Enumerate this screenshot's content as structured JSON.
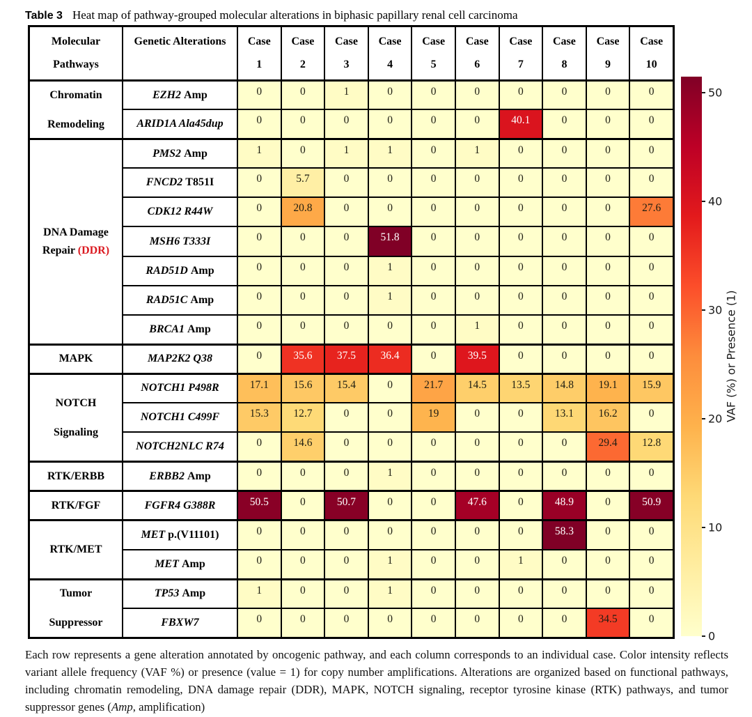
{
  "title": {
    "label": "Table 3",
    "text": "Heat map of pathway-grouped molecular alterations in biphasic papillary renal cell carcinoma"
  },
  "caption_parts": [
    {
      "text": "Each row represents a gene alteration annotated by oncogenic pathway, and each column corresponds to an individual case. Color intensity reflects variant allele frequency (VAF %) or presence (value = 1) for copy number amplifications. Alterations are organized based on functional pathways, including chromatin remodeling, DNA damage repair (DDR), MAPK, NOTCH signaling, receptor tyrosine kinase (RTK) pathways, and tumor suppressor genes ("
    },
    {
      "text": "Amp",
      "italic": true
    },
    {
      "text": ", amplification)"
    }
  ],
  "colors": {
    "accent_red": "#db1a21",
    "grid_line": "#000000",
    "text_dark": "#1d1d12",
    "text_light": "#ffffff"
  },
  "chart_data": {
    "type": "heatmap",
    "title": "Heat map of pathway-grouped molecular alterations in biphasic papillary renal cell carcinoma",
    "header": {
      "col1": [
        "Molecular",
        "Pathways"
      ],
      "col2": [
        "Genetic Alterations",
        ""
      ],
      "case_label": "Case",
      "case_numbers": [
        "1",
        "2",
        "3",
        "4",
        "5",
        "6",
        "7",
        "8",
        "9",
        "10"
      ]
    },
    "colorbar": {
      "label": "VAF (%) or Presence (1)",
      "ticks": [
        0,
        10,
        20,
        30,
        40,
        50
      ],
      "vmin": 0,
      "vmax": 51.5,
      "colormap": "YlOrRd",
      "colormap_stops": [
        "#FFFFCC",
        "#FFEDA0",
        "#FED976",
        "#FEB24C",
        "#FD8D3C",
        "#FC4E2A",
        "#E31A1C",
        "#BD0026",
        "#800026"
      ]
    },
    "groups": [
      {
        "pathway": [
          "Chromatin",
          "Remodeling"
        ],
        "rows": [
          {
            "gene_italic": "EZH2",
            "gene_plain": " Amp",
            "values": [
              0,
              0,
              1,
              0,
              0,
              0,
              0,
              0,
              0,
              0
            ]
          },
          {
            "gene_italic": "ARID1A Ala45dup",
            "gene_plain": "",
            "values": [
              0,
              0,
              0,
              0,
              0,
              0,
              40.1,
              0,
              0,
              0
            ]
          }
        ]
      },
      {
        "pathway": [
          "DNA Damage",
          "Repair (DDR)"
        ],
        "red_part": "(DDR)",
        "rows": [
          {
            "gene_italic": "PMS2",
            "gene_plain": " Amp",
            "values": [
              1,
              0,
              1,
              1,
              0,
              1,
              0,
              0,
              0,
              0
            ]
          },
          {
            "gene_italic": "FNCD2",
            "gene_plain": " T851I",
            "values": [
              0,
              5.7,
              0,
              0,
              0,
              0,
              0,
              0,
              0,
              0
            ]
          },
          {
            "gene_italic": "CDK12 R44W",
            "gene_plain": "",
            "values": [
              0,
              20.8,
              0,
              0,
              0,
              0,
              0,
              0,
              0,
              27.6
            ]
          },
          {
            "gene_italic": "MSH6 T333I",
            "gene_plain": "",
            "values": [
              0,
              0,
              0,
              51.8,
              0,
              0,
              0,
              0,
              0,
              0
            ]
          },
          {
            "gene_italic": "RAD51D",
            "gene_plain": " Amp",
            "values": [
              0,
              0,
              0,
              1,
              0,
              0,
              0,
              0,
              0,
              0
            ]
          },
          {
            "gene_italic": "RAD51C",
            "gene_plain": " Amp",
            "values": [
              0,
              0,
              0,
              1,
              0,
              0,
              0,
              0,
              0,
              0
            ]
          },
          {
            "gene_italic": "BRCA1",
            "gene_plain": " Amp",
            "values": [
              0,
              0,
              0,
              0,
              0,
              1,
              0,
              0,
              0,
              0
            ]
          }
        ]
      },
      {
        "pathway": [
          "MAPK"
        ],
        "rows": [
          {
            "gene_italic": "MAP2K2 Q38",
            "gene_plain": "",
            "values": [
              0,
              35.6,
              37.5,
              36.4,
              0,
              39.5,
              0,
              0,
              0,
              0
            ]
          }
        ]
      },
      {
        "pathway": [
          "NOTCH",
          "Signaling"
        ],
        "rows": [
          {
            "gene_italic": "NOTCH1 P498R",
            "gene_plain": "",
            "values": [
              17.1,
              15.6,
              15.4,
              0,
              21.7,
              14.5,
              13.5,
              14.8,
              19.1,
              15.9
            ]
          },
          {
            "gene_italic": "NOTCH1 C499F",
            "gene_plain": "",
            "values": [
              15.3,
              12.7,
              0,
              0,
              19,
              0,
              0,
              13.1,
              16.2,
              0
            ]
          },
          {
            "gene_italic": "NOTCH2NLC R74",
            "gene_plain": "",
            "values": [
              0,
              14.6,
              0,
              0,
              0,
              0,
              0,
              0,
              29.4,
              12.8
            ]
          }
        ]
      },
      {
        "pathway": [
          "RTK/ERBB"
        ],
        "rows": [
          {
            "gene_italic": "ERBB2",
            "gene_plain": " Amp",
            "values": [
              0,
              0,
              0,
              1,
              0,
              0,
              0,
              0,
              0,
              0
            ]
          }
        ]
      },
      {
        "pathway": [
          "RTK/FGF"
        ],
        "rows": [
          {
            "gene_italic": "FGFR4 G388R",
            "gene_plain": "",
            "values": [
              50.5,
              0,
              50.7,
              0,
              0,
              47.6,
              0,
              48.9,
              0,
              50.9
            ]
          }
        ]
      },
      {
        "pathway": [
          "RTK/MET"
        ],
        "rows": [
          {
            "gene_italic": "MET",
            "gene_plain": " p.(V11101)",
            "values": [
              0,
              0,
              0,
              0,
              0,
              0,
              0,
              58.3,
              0,
              0
            ]
          },
          {
            "gene_italic": "MET",
            "gene_plain": " Amp",
            "values": [
              0,
              0,
              0,
              1,
              0,
              0,
              1,
              0,
              0,
              0
            ]
          }
        ]
      },
      {
        "pathway": [
          "Tumor",
          "Suppressor"
        ],
        "rows": [
          {
            "gene_italic": "TP53",
            "gene_plain": " Amp",
            "values": [
              1,
              0,
              0,
              1,
              0,
              0,
              0,
              0,
              0,
              0
            ]
          },
          {
            "gene_italic": "FBXW7",
            "gene_plain": "",
            "values": [
              0,
              0,
              0,
              0,
              0,
              0,
              0,
              0,
              34.5,
              0
            ]
          }
        ]
      }
    ]
  }
}
